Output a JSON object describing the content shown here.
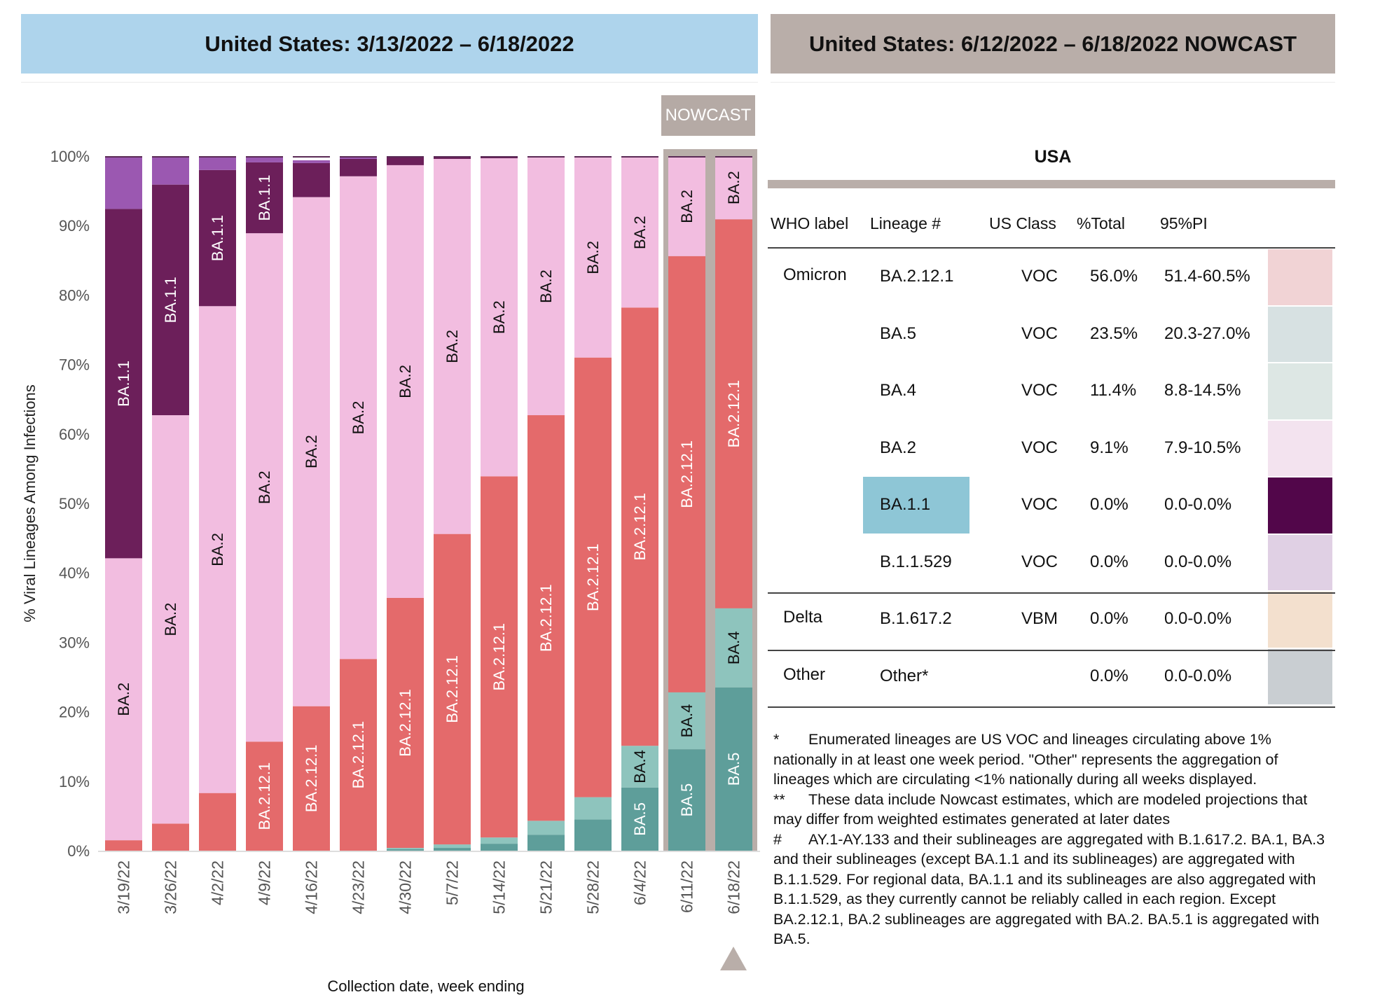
{
  "header_left": "United States: 3/13/2022 – 6/18/2022",
  "header_right": "United States: 6/12/2022 – 6/18/2022 NOWCAST",
  "nowcast_label": "NOWCAST",
  "chart_data": {
    "type": "bar",
    "stacked": true,
    "ylabel": "% Viral Lineages Among Infections",
    "xlabel": "Collection date, week ending",
    "ylim": [
      0,
      100
    ],
    "yticks": [
      "0%",
      "10%",
      "20%",
      "30%",
      "40%",
      "50%",
      "60%",
      "70%",
      "80%",
      "90%",
      "100%"
    ],
    "categories": [
      "3/19/22",
      "3/26/22",
      "4/2/22",
      "4/9/22",
      "4/16/22",
      "4/23/22",
      "4/30/22",
      "5/7/22",
      "5/14/22",
      "5/21/22",
      "5/28/22",
      "6/4/22",
      "6/11/22",
      "6/18/22"
    ],
    "nowcast_categories": [
      "6/11/22",
      "6/18/22"
    ],
    "series": [
      {
        "name": "BA.5",
        "color": "#5e9e9a",
        "values": [
          0,
          0,
          0,
          0,
          0,
          0,
          0.2,
          0.4,
          1.0,
          2.3,
          4.5,
          9.1,
          14.6,
          23.5
        ]
      },
      {
        "name": "BA.4",
        "color": "#8ec4bd",
        "values": [
          0,
          0,
          0,
          0,
          0,
          0,
          0.2,
          0.5,
          0.9,
          2.0,
          3.2,
          6.0,
          8.2,
          11.4
        ]
      },
      {
        "name": "BA.2.12.1",
        "color": "#e46a6b",
        "values": [
          1.5,
          3.9,
          8.3,
          15.7,
          20.8,
          27.6,
          36.0,
          44.7,
          52.0,
          58.4,
          63.3,
          63.1,
          62.8,
          56.0
        ]
      },
      {
        "name": "BA.2",
        "color": "#f2bde0",
        "values": [
          40.6,
          58.8,
          70.1,
          73.2,
          73.3,
          69.5,
          62.3,
          54.0,
          45.8,
          37.1,
          28.8,
          21.6,
          14.3,
          9.1
        ]
      },
      {
        "name": "BA.1.1",
        "color": "#6c1f5a",
        "values": [
          50.3,
          33.2,
          19.6,
          10.2,
          4.9,
          2.5,
          1.1,
          0.4,
          0.3,
          0.2,
          0.2,
          0.2,
          0.1,
          0.0
        ]
      },
      {
        "name": "B.1.1.529",
        "color": "#9b58b1",
        "values": [
          7.6,
          4.1,
          2.0,
          0.9,
          0.4,
          0.3,
          0.2,
          0.0,
          0.0,
          0.0,
          0.0,
          0.0,
          0.0,
          0.0
        ]
      }
    ],
    "segment_labels": [
      {
        "series": "BA.2",
        "categories": [
          "3/19/22",
          "3/26/22",
          "4/2/22",
          "4/9/22",
          "4/16/22",
          "4/23/22",
          "4/30/22",
          "5/7/22",
          "5/14/22",
          "5/21/22",
          "5/28/22",
          "6/4/22",
          "6/11/22",
          "6/18/22"
        ]
      },
      {
        "series": "BA.1.1",
        "categories": [
          "3/19/22",
          "3/26/22",
          "4/2/22",
          "4/9/22"
        ]
      },
      {
        "series": "BA.2.12.1",
        "categories": [
          "4/9/22",
          "4/16/22",
          "4/23/22",
          "4/30/22",
          "5/7/22",
          "5/14/22",
          "5/21/22",
          "5/28/22",
          "6/4/22",
          "6/11/22",
          "6/18/22"
        ]
      },
      {
        "series": "BA.4",
        "categories": [
          "6/4/22",
          "6/11/22",
          "6/18/22"
        ]
      },
      {
        "series": "BA.5",
        "categories": [
          "6/4/22",
          "6/11/22",
          "6/18/22"
        ]
      }
    ]
  },
  "table": {
    "title": "USA",
    "headers": {
      "who": "WHO label",
      "lineage": "Lineage #",
      "class": "US Class",
      "total": "%Total",
      "pi": "95%PI"
    },
    "rows": [
      {
        "who": "Omicron",
        "lineage": "BA.2.12.1",
        "class": "VOC",
        "total": "56.0%",
        "pi": "51.4-60.5%",
        "color": "#f1d3d5"
      },
      {
        "who": "",
        "lineage": "BA.5",
        "class": "VOC",
        "total": "23.5%",
        "pi": "20.3-27.0%",
        "color": "#d7e1e2"
      },
      {
        "who": "",
        "lineage": "BA.4",
        "class": "VOC",
        "total": "11.4%",
        "pi": "8.8-14.5%",
        "color": "#dde7e4"
      },
      {
        "who": "",
        "lineage": "BA.2",
        "class": "VOC",
        "total": "9.1%",
        "pi": "7.9-10.5%",
        "color": "#f3e3ef"
      },
      {
        "who": "",
        "lineage": "BA.1.1",
        "class": "VOC",
        "total": "0.0%",
        "pi": "0.0-0.0%",
        "color": "#52064a"
      },
      {
        "who": "",
        "lineage": "B.1.1.529",
        "class": "VOC",
        "total": "0.0%",
        "pi": "0.0-0.0%",
        "color": "#e0d0e4"
      },
      {
        "who": "Delta",
        "lineage": "B.1.617.2",
        "class": "VBM",
        "total": "0.0%",
        "pi": "0.0-0.0%",
        "color": "#f3e0ce"
      },
      {
        "who": "Other",
        "lineage": "Other*",
        "class": "",
        "total": "0.0%",
        "pi": "0.0-0.0%",
        "color": "#c9ced2"
      }
    ],
    "highlighted_lineage": "BA.1.1"
  },
  "footnotes": [
    {
      "mark": "*",
      "text": "Enumerated lineages are US VOC and lineages circulating above 1% nationally in at least one week period. \"Other\" represents the aggregation of lineages which are circulating <1% nationally during all weeks displayed."
    },
    {
      "mark": "**",
      "text": "These data include Nowcast estimates, which are modeled projections that may differ from weighted estimates generated at later dates"
    },
    {
      "mark": "#",
      "text": "AY.1-AY.133 and their sublineages are aggregated with B.1.617.2. BA.1, BA.3 and their sublineages (except BA.1.1 and its sublineages) are aggregated with B.1.1.529. For regional data, BA.1.1 and its sublineages are also aggregated with B.1.1.529, as they currently cannot be reliably called in each region. Except BA.2.12.1, BA.2 sublineages are aggregated with BA.2. BA.5.1 is aggregated with BA.5."
    }
  ]
}
